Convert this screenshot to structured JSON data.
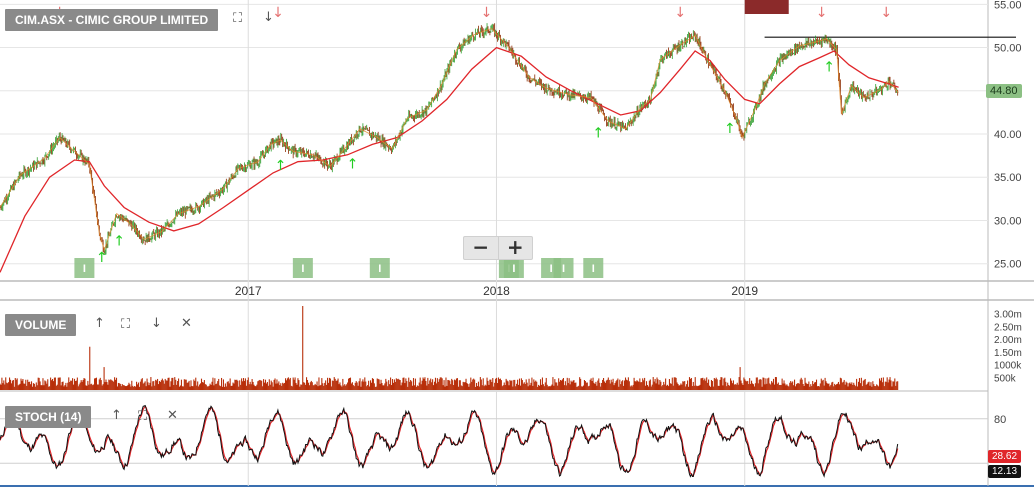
{
  "title": "CIM.ASX - CIMIC GROUP LIMITED",
  "volume_label": "VOLUME",
  "stoch_label": "STOCH (14)",
  "price_badges": {
    "last": "44.80",
    "stoch_red": "28.62",
    "stoch_black": "12.13"
  },
  "colors": {
    "up": "#2e9e2e",
    "down": "#8b2a00",
    "ma": "#e0262a",
    "volume": "#b82f0a",
    "stoch_k": "#111111",
    "stoch_d": "#e0262a",
    "badge_green": "#8cc084",
    "badge_red": "#e0262a",
    "signal_up": "#22cc22",
    "signal_down": "#e57373"
  },
  "icons": {
    "expand": "expand-icon",
    "down": "arrow-down-icon",
    "up": "arrow-up-icon",
    "close": "close-icon",
    "zoom_out": "minus-icon",
    "zoom_in": "plus-icon"
  },
  "zoom": {
    "minus": "−",
    "plus": "+"
  },
  "chart_data": [
    {
      "type": "line",
      "title": "CIM.ASX - CIMIC GROUP LIMITED",
      "xlabel": "",
      "ylabel": "",
      "x_ticks": [
        "2017",
        "2018",
        "2019"
      ],
      "y_ticks": [
        "25.00",
        "30.00",
        "35.00",
        "40.00",
        "45.00",
        "50.00",
        "55.00"
      ],
      "ylim": [
        23,
        55.5
      ],
      "xlim": [
        2016.0,
        2019.98
      ],
      "price_keypoints": [
        [
          2016.0,
          31.5
        ],
        [
          2016.08,
          35.2
        ],
        [
          2016.18,
          37.2
        ],
        [
          2016.24,
          39.6
        ],
        [
          2016.3,
          38.0
        ],
        [
          2016.36,
          36.5
        ],
        [
          2016.4,
          28.5
        ],
        [
          2016.42,
          26.6
        ],
        [
          2016.47,
          30.8
        ],
        [
          2016.53,
          29.5
        ],
        [
          2016.58,
          27.8
        ],
        [
          2016.65,
          28.7
        ],
        [
          2016.72,
          30.8
        ],
        [
          2016.8,
          31.6
        ],
        [
          2016.9,
          33.7
        ],
        [
          2016.96,
          36.0
        ],
        [
          2017.04,
          36.8
        ],
        [
          2017.09,
          38.8
        ],
        [
          2017.13,
          39.3
        ],
        [
          2017.18,
          38.0
        ],
        [
          2017.26,
          37.6
        ],
        [
          2017.33,
          36.3
        ],
        [
          2017.38,
          38.0
        ],
        [
          2017.45,
          40.6
        ],
        [
          2017.52,
          39.6
        ],
        [
          2017.58,
          38.3
        ],
        [
          2017.64,
          41.8
        ],
        [
          2017.72,
          42.8
        ],
        [
          2017.78,
          45.8
        ],
        [
          2017.84,
          49.8
        ],
        [
          2017.91,
          51.5
        ],
        [
          2017.98,
          52.2
        ],
        [
          2018.05,
          50.0
        ],
        [
          2018.13,
          46.6
        ],
        [
          2018.2,
          45.3
        ],
        [
          2018.3,
          44.5
        ],
        [
          2018.38,
          44.2
        ],
        [
          2018.45,
          41.5
        ],
        [
          2018.52,
          40.6
        ],
        [
          2018.58,
          43.0
        ],
        [
          2018.62,
          44.0
        ],
        [
          2018.66,
          48.6
        ],
        [
          2018.74,
          50.3
        ],
        [
          2018.8,
          51.4
        ],
        [
          2018.86,
          48.0
        ],
        [
          2018.92,
          45.0
        ],
        [
          2018.97,
          41.5
        ],
        [
          2018.99,
          39.6
        ],
        [
          2019.04,
          42.8
        ],
        [
          2019.08,
          45.8
        ],
        [
          2019.14,
          48.5
        ],
        [
          2019.22,
          50.2
        ],
        [
          2019.28,
          50.6
        ],
        [
          2019.33,
          51.0
        ],
        [
          2019.37,
          49.8
        ],
        [
          2019.39,
          42.3
        ],
        [
          2019.43,
          45.6
        ],
        [
          2019.48,
          44.2
        ],
        [
          2019.55,
          45.2
        ],
        [
          2019.58,
          46.1
        ],
        [
          2019.62,
          44.8
        ]
      ],
      "ma_keypoints": [
        [
          2016.0,
          24.0
        ],
        [
          2016.1,
          30.5
        ],
        [
          2016.2,
          35.0
        ],
        [
          2016.3,
          37.0
        ],
        [
          2016.36,
          36.8
        ],
        [
          2016.42,
          34.0
        ],
        [
          2016.5,
          31.5
        ],
        [
          2016.6,
          29.8
        ],
        [
          2016.7,
          28.8
        ],
        [
          2016.8,
          29.6
        ],
        [
          2016.9,
          31.5
        ],
        [
          2017.0,
          33.5
        ],
        [
          2017.1,
          35.5
        ],
        [
          2017.2,
          36.8
        ],
        [
          2017.3,
          37.0
        ],
        [
          2017.4,
          37.6
        ],
        [
          2017.5,
          38.8
        ],
        [
          2017.6,
          39.6
        ],
        [
          2017.7,
          41.5
        ],
        [
          2017.8,
          44.0
        ],
        [
          2017.9,
          47.5
        ],
        [
          2018.0,
          50.0
        ],
        [
          2018.1,
          49.0
        ],
        [
          2018.2,
          46.6
        ],
        [
          2018.3,
          45.0
        ],
        [
          2018.4,
          43.6
        ],
        [
          2018.5,
          42.2
        ],
        [
          2018.58,
          42.7
        ],
        [
          2018.66,
          44.8
        ],
        [
          2018.74,
          47.5
        ],
        [
          2018.8,
          49.6
        ],
        [
          2018.86,
          48.5
        ],
        [
          2018.92,
          46.3
        ],
        [
          2019.0,
          44.0
        ],
        [
          2019.06,
          43.5
        ],
        [
          2019.14,
          45.8
        ],
        [
          2019.22,
          47.8
        ],
        [
          2019.3,
          48.8
        ],
        [
          2019.36,
          49.6
        ],
        [
          2019.42,
          48.0
        ],
        [
          2019.5,
          46.5
        ],
        [
          2019.58,
          45.8
        ],
        [
          2019.62,
          45.4
        ]
      ],
      "reference_line": 51.2,
      "down_signals": [
        2016.24,
        2017.12,
        2017.96,
        2018.74,
        2019.31,
        2019.57
      ],
      "up_signals": [
        2016.41,
        2016.48,
        2017.13,
        2017.42,
        2018.41,
        2018.94,
        2019.34
      ],
      "info_markers": [
        2016.34,
        2017.22,
        2017.53,
        2018.05,
        2018.07,
        2018.22,
        2018.27,
        2018.39
      ]
    },
    {
      "type": "bar",
      "title": "VOLUME",
      "y_ticks": [
        "500k",
        "1000k",
        "1.50m",
        "2.00m",
        "2.50m",
        "3.00m"
      ],
      "ylim": [
        0,
        3300000
      ],
      "typical_volume": 300000,
      "spikes": [
        [
          2016.36,
          1700000
        ],
        [
          2016.42,
          900000
        ],
        [
          2017.22,
          3300000
        ],
        [
          2018.98,
          900000
        ],
        [
          2019.62,
          1400000
        ]
      ]
    },
    {
      "type": "line",
      "title": "STOCH (14)",
      "y_ticks": [
        "80"
      ],
      "ylim": [
        0,
        100
      ],
      "last_k": 12.13,
      "last_d": 28.62
    }
  ]
}
